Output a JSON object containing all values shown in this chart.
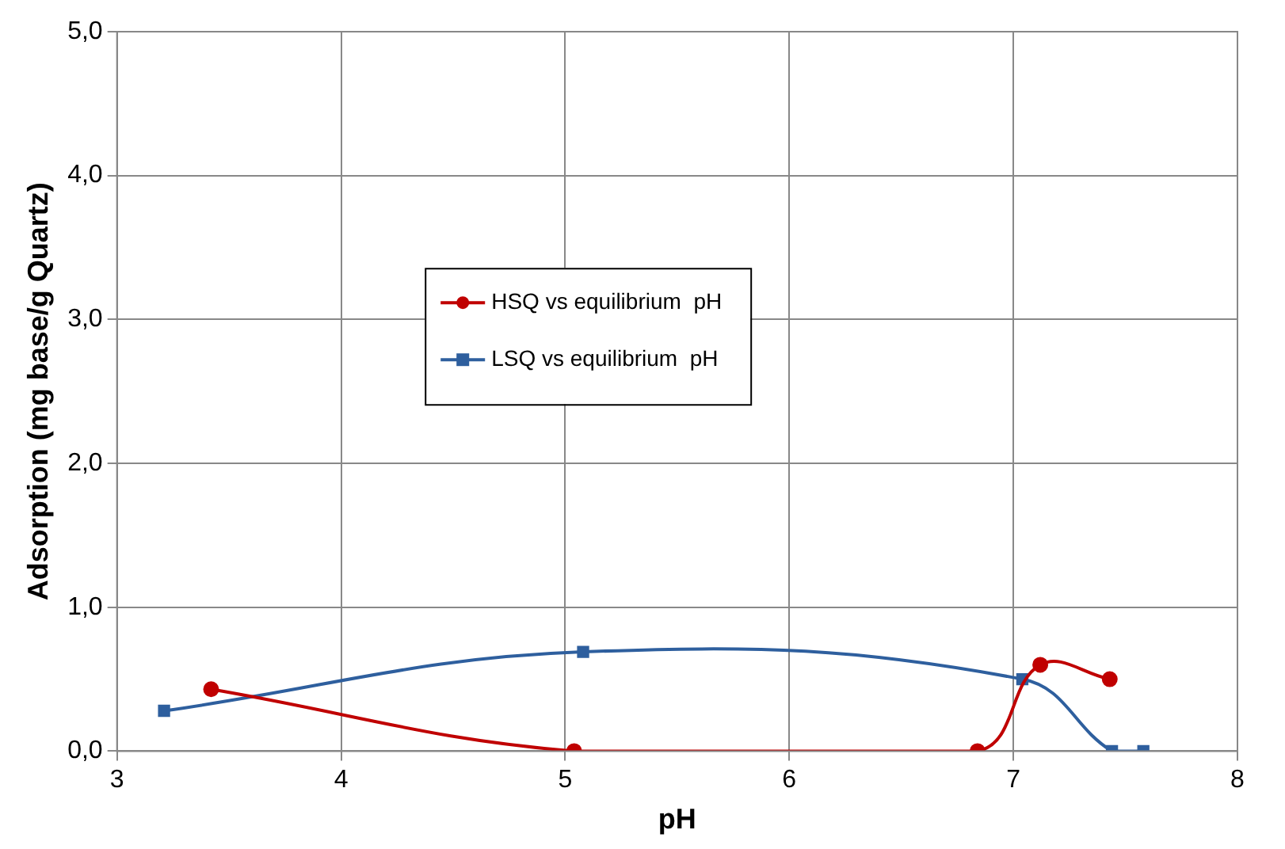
{
  "chart_data": {
    "type": "line",
    "xlabel": "pH",
    "ylabel": "Adsorption (mg base/g Quartz)",
    "series": [
      {
        "name": "HSQ vs equilibrium  pH",
        "color": "#c00000",
        "marker": "circle",
        "x": [
          3.42,
          5.04,
          6.84,
          7.12,
          7.43
        ],
        "values": [
          0.43,
          0.0,
          0.0,
          0.6,
          0.5
        ]
      },
      {
        "name": "LSQ vs equilibrium  pH",
        "color": "#2e5f9e",
        "marker": "square",
        "x": [
          3.21,
          5.08,
          7.04,
          7.44,
          7.58
        ],
        "values": [
          0.28,
          0.69,
          0.5,
          0.0,
          0.0
        ]
      }
    ],
    "xlim": [
      3,
      8
    ],
    "xticks": [
      3,
      4,
      5,
      6,
      7,
      8
    ],
    "ylim": [
      0,
      5
    ],
    "yticks": [
      {
        "value": 0,
        "label": "0,0"
      },
      {
        "value": 1,
        "label": "1,0"
      },
      {
        "value": 2,
        "label": "2,0"
      },
      {
        "value": 3,
        "label": "3,0"
      },
      {
        "value": 4,
        "label": "4,0"
      },
      {
        "value": 5,
        "label": "5,0"
      }
    ],
    "grid": true,
    "legend": "center"
  }
}
